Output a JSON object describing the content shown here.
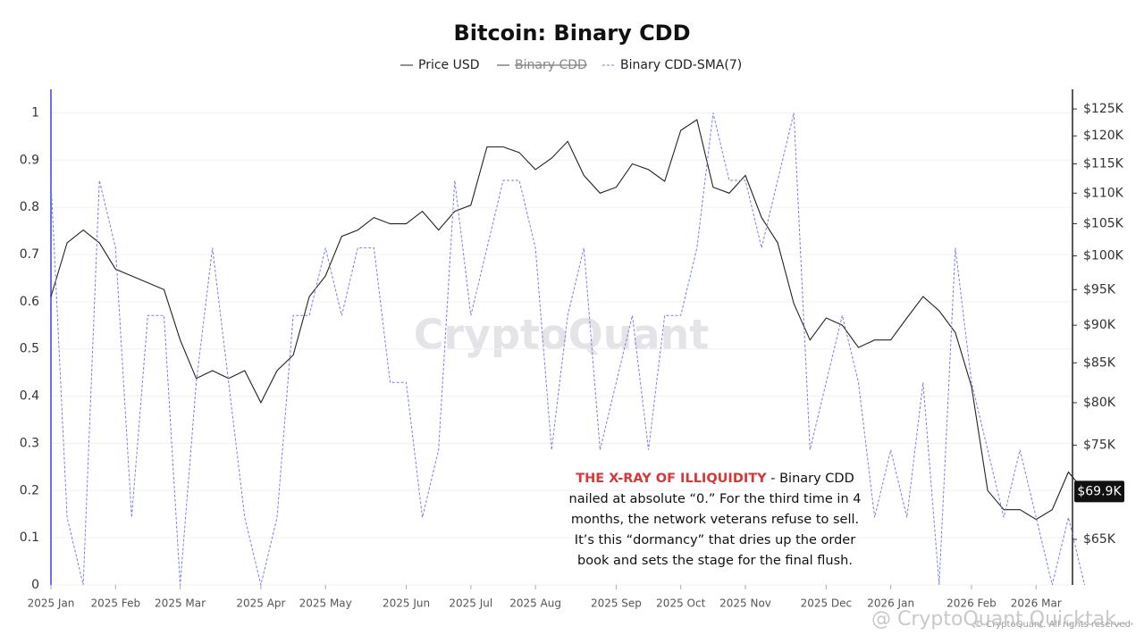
{
  "chart_data": {
    "type": "line",
    "title": "Bitcoin: Binary CDD",
    "categories": [
      "2025 Jan",
      null,
      null,
      null,
      "2025 Feb",
      null,
      null,
      null,
      "2025 Mar",
      null,
      null,
      null,
      null,
      "2025 Apr",
      null,
      null,
      null,
      "2025 May",
      null,
      null,
      null,
      null,
      "2025 Jun",
      null,
      null,
      null,
      "2025 Jul",
      null,
      null,
      null,
      "2025 Aug",
      null,
      null,
      null,
      null,
      "2025 Sep",
      null,
      null,
      null,
      "2025 Oct",
      null,
      null,
      null,
      "2025 Nov",
      null,
      null,
      null,
      null,
      "2025 Dec",
      null,
      null,
      null,
      "2026 Jan",
      null,
      null,
      null,
      null,
      "2026 Feb",
      null,
      null,
      null,
      "2026 Mar",
      null,
      null,
      null
    ],
    "series": [
      {
        "name": "Price USD",
        "color": "#222222",
        "axis": "y2",
        "dash": false,
        "values": [
          94000,
          102000,
          104000,
          102000,
          98000,
          97000,
          96000,
          95000,
          88000,
          83000,
          84000,
          83000,
          84000,
          80000,
          84000,
          86000,
          94000,
          97000,
          103000,
          104000,
          106000,
          105000,
          105000,
          107000,
          104000,
          107000,
          108000,
          118000,
          118000,
          117000,
          114000,
          116000,
          119000,
          113000,
          110000,
          111000,
          115000,
          114000,
          112000,
          121000,
          123000,
          111000,
          110000,
          113000,
          106000,
          102000,
          93000,
          88000,
          91000,
          90000,
          87000,
          88000,
          88000,
          91000,
          94000,
          92000,
          89000,
          82000,
          70000,
          68000,
          68000,
          67000,
          68000,
          72000,
          69900
        ],
        "last_label": "$69.9K"
      },
      {
        "name": "Binary CDD-SMA(7)",
        "color": "#7b7fe8",
        "dash": true,
        "values": [
          0.857,
          0.143,
          0,
          0.857,
          0.714,
          0.143,
          0.571,
          0.571,
          0,
          0.429,
          0.714,
          0.429,
          0.143,
          0,
          0.143,
          0.571,
          0.571,
          0.714,
          0.571,
          0.714,
          0.714,
          0.429,
          0.429,
          0.143,
          0.286,
          0.857,
          0.571,
          0.714,
          0.857,
          0.857,
          0.714,
          0.286,
          0.571,
          0.714,
          0.286,
          0.429,
          0.571,
          0.286,
          0.571,
          0.571,
          0.714,
          1,
          0.857,
          0.857,
          0.714,
          0.857,
          1,
          0.286,
          0.429,
          0.571,
          0.429,
          0.143,
          0.286,
          0.143,
          0.429,
          0,
          0.714,
          0.429,
          0.286,
          0.143,
          0.286,
          0.143,
          0,
          0.143,
          0
        ]
      }
    ],
    "hidden_series": [
      {
        "name": "Binary CDD",
        "color": "#444444"
      }
    ],
    "ylim": [
      0,
      1.05
    ],
    "yticks": [
      0,
      0.1,
      0.2,
      0.3,
      0.4,
      0.5,
      0.6,
      0.7,
      0.8,
      0.9,
      1
    ],
    "y2log": true,
    "y2lim": [
      60650,
      128800
    ],
    "y2ticks": [
      {
        "value": 65000,
        "label": "$65K"
      },
      {
        "value": 75000,
        "label": "$75K"
      },
      {
        "value": 80000,
        "label": "$80K"
      },
      {
        "value": 85000,
        "label": "$85K"
      },
      {
        "value": 90000,
        "label": "$90K"
      },
      {
        "value": 95000,
        "label": "$95K"
      },
      {
        "value": 100000,
        "label": "$100K"
      },
      {
        "value": 105000,
        "label": "$105K"
      },
      {
        "value": 110000,
        "label": "$110K"
      },
      {
        "value": 115000,
        "label": "$115K"
      },
      {
        "value": 120000,
        "label": "$120K"
      },
      {
        "value": 125000,
        "label": "$125K"
      }
    ],
    "grid": true,
    "annotation": {
      "highlight": "THE X-RAY OF ILLIQUIDITY",
      "highlight_color": "#d93636",
      "lines": [
        " - Binary CDD",
        "nailed at absolute “0.” For the third time in 4",
        "months, the network veterans refuse to sell.",
        "It’s this “dormancy” that dries up the order",
        "book and sets the stage for the final flush."
      ]
    },
    "watermark": "CryptoQuant",
    "copyright": "© CryptoQuant. All rights reserved",
    "credit": "@ CryptoQuant Quicktak..."
  }
}
